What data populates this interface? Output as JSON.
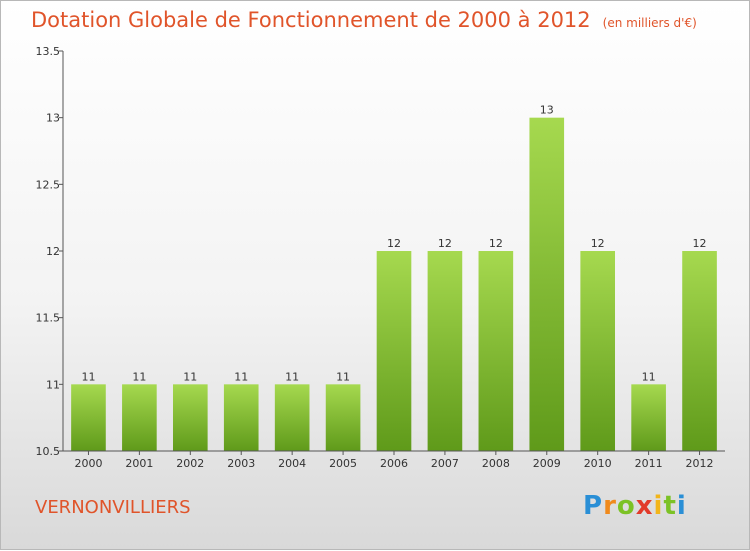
{
  "title": "Dotation Globale de Fonctionnement de 2000 à 2012",
  "unit": "(en milliers d'€)",
  "commune": "VERNONVILLIERS",
  "logo": {
    "letters": [
      "P",
      "r",
      "o",
      "x",
      "i",
      "t",
      "i"
    ],
    "colors": [
      "#2a8fd6",
      "#f08a1c",
      "#7cc225",
      "#e23a2a",
      "#f2b51a",
      "#7cc225",
      "#2a8fd6"
    ]
  },
  "colors": {
    "bar": "#7fbe2c",
    "title": "#e0542a"
  },
  "chart_data": {
    "type": "bar",
    "categories": [
      "2000",
      "2001",
      "2002",
      "2003",
      "2004",
      "2005",
      "2006",
      "2007",
      "2008",
      "2009",
      "2010",
      "2011",
      "2012"
    ],
    "values": [
      11,
      11,
      11,
      11,
      11,
      11,
      12,
      12,
      12,
      13,
      12,
      11,
      12
    ],
    "data_labels": [
      "11",
      "11",
      "11",
      "11",
      "11",
      "11",
      "12",
      "12",
      "12",
      "13",
      "12",
      "11",
      "12"
    ],
    "ylim": [
      10.5,
      13.5
    ],
    "yticks": [
      "10.5",
      "11",
      "11.5",
      "12",
      "12.5",
      "13",
      "13.5"
    ],
    "title": "Dotation Globale de Fonctionnement de 2000 à 2012",
    "xlabel": "",
    "ylabel": ""
  }
}
